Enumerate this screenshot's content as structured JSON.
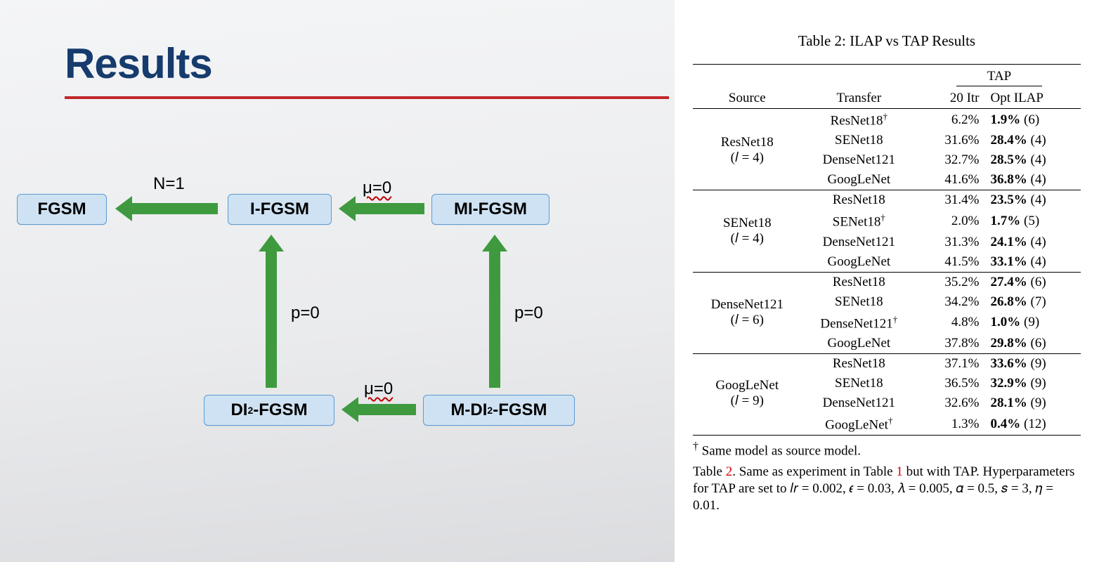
{
  "title": "Results",
  "diagram": {
    "nodes": {
      "fgsm": "FGSM",
      "ifgsm": "I-FGSM",
      "mifgsm": "MI-FGSM",
      "di2fgsm_pre": "DI",
      "di2fgsm_post": "-FGSM",
      "mdi2fgsm_pre": "M-DI",
      "mdi2fgsm_post": "-FGSM"
    },
    "arrow_labels": {
      "n1": "N=1",
      "mu0_a": "μ=0",
      "mu0_b": "μ=0",
      "p0_a": "p=0",
      "p0_b": "p=0"
    }
  },
  "table": {
    "caption": "Table 2:  ILAP vs TAP Results",
    "head": {
      "source": "Source",
      "transfer": "Transfer",
      "tap": "TAP",
      "c1": "20 Itr",
      "c2": "Opt ILAP"
    },
    "groups": [
      {
        "source": "ResNet18",
        "l": "(𝑙 = 4)",
        "rows": [
          {
            "t": "ResNet18",
            "dag": true,
            "a": "6.2%",
            "b": "1.9%",
            "n": "(6)"
          },
          {
            "t": "SENet18",
            "dag": false,
            "a": "31.6%",
            "b": "28.4%",
            "n": "(4)"
          },
          {
            "t": "DenseNet121",
            "dag": false,
            "a": "32.7%",
            "b": "28.5%",
            "n": "(4)"
          },
          {
            "t": "GoogLeNet",
            "dag": false,
            "a": "41.6%",
            "b": "36.8%",
            "n": "(4)"
          }
        ]
      },
      {
        "source": "SENet18",
        "l": "(𝑙 = 4)",
        "rows": [
          {
            "t": "ResNet18",
            "dag": false,
            "a": "31.4%",
            "b": "23.5%",
            "n": "(4)"
          },
          {
            "t": "SENet18",
            "dag": true,
            "a": "2.0%",
            "b": "1.7%",
            "n": "(5)"
          },
          {
            "t": "DenseNet121",
            "dag": false,
            "a": "31.3%",
            "b": "24.1%",
            "n": "(4)"
          },
          {
            "t": "GoogLeNet",
            "dag": false,
            "a": "41.5%",
            "b": "33.1%",
            "n": "(4)"
          }
        ]
      },
      {
        "source": "DenseNet121",
        "l": "(𝑙 = 6)",
        "rows": [
          {
            "t": "ResNet18",
            "dag": false,
            "a": "35.2%",
            "b": "27.4%",
            "n": "(6)"
          },
          {
            "t": "SENet18",
            "dag": false,
            "a": "34.2%",
            "b": "26.8%",
            "n": "(7)"
          },
          {
            "t": "DenseNet121",
            "dag": true,
            "a": "4.8%",
            "b": "1.0%",
            "n": "(9)"
          },
          {
            "t": "GoogLeNet",
            "dag": false,
            "a": "37.8%",
            "b": "29.8%",
            "n": "(6)"
          }
        ]
      },
      {
        "source": "GoogLeNet",
        "l": "(𝑙 = 9)",
        "rows": [
          {
            "t": "ResNet18",
            "dag": false,
            "a": "37.1%",
            "b": "33.6%",
            "n": "(9)"
          },
          {
            "t": "SENet18",
            "dag": false,
            "a": "36.5%",
            "b": "32.9%",
            "n": "(9)"
          },
          {
            "t": "DenseNet121",
            "dag": false,
            "a": "32.6%",
            "b": "28.1%",
            "n": "(9)"
          },
          {
            "t": "GoogLeNet",
            "dag": true,
            "a": "1.3%",
            "b": "0.4%",
            "n": "(12)"
          }
        ]
      }
    ],
    "foot_dag": " Same model as source model.",
    "foot_pre": "Table ",
    "foot_num": "2",
    "foot_mid": ". Same as experiment in Table ",
    "foot_num2": "1",
    "foot_post": " but with TAP. Hyperparameters for TAP are set to 𝑙𝑟 = 0.002, 𝜖 = 0.03, 𝜆 = 0.005, 𝛼 = 0.5, 𝑠 = 3, 𝜂 = 0.01."
  }
}
